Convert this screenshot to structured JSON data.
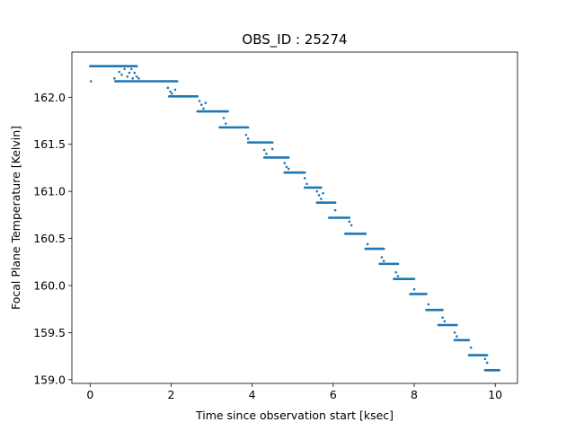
{
  "chart_data": {
    "type": "scatter",
    "title": "OBS_ID : 25274",
    "xlabel": "Time since observation start [ksec]",
    "ylabel": "Focal Plane Temperature [Kelvin]",
    "xlim": [
      -0.45,
      10.55
    ],
    "ylim": [
      158.96,
      162.48
    ],
    "xticks": [
      0,
      2,
      4,
      6,
      8,
      10
    ],
    "xtick_labels": [
      "0",
      "2",
      "4",
      "6",
      "8",
      "10"
    ],
    "yticks": [
      159.0,
      159.5,
      160.0,
      160.5,
      161.0,
      161.5,
      162.0
    ],
    "ytick_labels": [
      "159.0",
      "159.5",
      "160.0",
      "160.5",
      "161.0",
      "161.5",
      "162.0"
    ],
    "marker_color": "#1f77b4",
    "grid": false,
    "series": [
      {
        "name": "focal plane temperature",
        "levels": [
          {
            "y": 162.33,
            "x_start": 0.0,
            "x_end": 1.15
          },
          {
            "y": 162.17,
            "x_start": 0.62,
            "x_end": 2.15
          },
          {
            "y": 162.01,
            "x_start": 1.95,
            "x_end": 2.65
          },
          {
            "y": 161.85,
            "x_start": 2.65,
            "x_end": 3.4
          },
          {
            "y": 161.68,
            "x_start": 3.2,
            "x_end": 3.9
          },
          {
            "y": 161.52,
            "x_start": 3.9,
            "x_end": 4.5
          },
          {
            "y": 161.36,
            "x_start": 4.3,
            "x_end": 4.9
          },
          {
            "y": 161.2,
            "x_start": 4.8,
            "x_end": 5.3
          },
          {
            "y": 161.04,
            "x_start": 5.3,
            "x_end": 5.7
          },
          {
            "y": 160.88,
            "x_start": 5.6,
            "x_end": 6.05
          },
          {
            "y": 160.72,
            "x_start": 5.9,
            "x_end": 6.4
          },
          {
            "y": 160.55,
            "x_start": 6.3,
            "x_end": 6.8
          },
          {
            "y": 160.39,
            "x_start": 6.8,
            "x_end": 7.25
          },
          {
            "y": 160.23,
            "x_start": 7.15,
            "x_end": 7.6
          },
          {
            "y": 160.07,
            "x_start": 7.5,
            "x_end": 8.0
          },
          {
            "y": 159.91,
            "x_start": 7.9,
            "x_end": 8.3
          },
          {
            "y": 159.74,
            "x_start": 8.3,
            "x_end": 8.7
          },
          {
            "y": 159.58,
            "x_start": 8.6,
            "x_end": 9.05
          },
          {
            "y": 159.42,
            "x_start": 9.0,
            "x_end": 9.35
          },
          {
            "y": 159.26,
            "x_start": 9.35,
            "x_end": 9.8
          },
          {
            "y": 159.1,
            "x_start": 9.75,
            "x_end": 10.1
          }
        ],
        "scatter_points": [
          {
            "x": 0.02,
            "y": 162.17
          },
          {
            "x": 0.6,
            "y": 162.2
          },
          {
            "x": 0.72,
            "y": 162.27
          },
          {
            "x": 0.78,
            "y": 162.24
          },
          {
            "x": 0.85,
            "y": 162.3
          },
          {
            "x": 0.92,
            "y": 162.22
          },
          {
            "x": 0.97,
            "y": 162.26
          },
          {
            "x": 1.02,
            "y": 162.3
          },
          {
            "x": 1.05,
            "y": 162.2
          },
          {
            "x": 1.1,
            "y": 162.26
          },
          {
            "x": 1.15,
            "y": 162.22
          },
          {
            "x": 1.2,
            "y": 162.2
          },
          {
            "x": 1.92,
            "y": 162.1
          },
          {
            "x": 1.98,
            "y": 162.06
          },
          {
            "x": 2.02,
            "y": 162.04
          },
          {
            "x": 2.1,
            "y": 162.08
          },
          {
            "x": 2.7,
            "y": 161.96
          },
          {
            "x": 2.75,
            "y": 161.92
          },
          {
            "x": 2.8,
            "y": 161.88
          },
          {
            "x": 2.85,
            "y": 161.94
          },
          {
            "x": 3.3,
            "y": 161.78
          },
          {
            "x": 3.35,
            "y": 161.72
          },
          {
            "x": 3.85,
            "y": 161.6
          },
          {
            "x": 3.9,
            "y": 161.56
          },
          {
            "x": 4.3,
            "y": 161.44
          },
          {
            "x": 4.35,
            "y": 161.4
          },
          {
            "x": 4.5,
            "y": 161.45
          },
          {
            "x": 4.8,
            "y": 161.3
          },
          {
            "x": 4.85,
            "y": 161.26
          },
          {
            "x": 4.9,
            "y": 161.24
          },
          {
            "x": 5.3,
            "y": 161.14
          },
          {
            "x": 5.35,
            "y": 161.08
          },
          {
            "x": 5.6,
            "y": 161.0
          },
          {
            "x": 5.65,
            "y": 160.96
          },
          {
            "x": 5.7,
            "y": 160.92
          },
          {
            "x": 5.75,
            "y": 160.98
          },
          {
            "x": 6.05,
            "y": 160.8
          },
          {
            "x": 6.4,
            "y": 160.68
          },
          {
            "x": 6.45,
            "y": 160.64
          },
          {
            "x": 6.85,
            "y": 160.44
          },
          {
            "x": 7.2,
            "y": 160.3
          },
          {
            "x": 7.25,
            "y": 160.26
          },
          {
            "x": 7.55,
            "y": 160.14
          },
          {
            "x": 7.6,
            "y": 160.1
          },
          {
            "x": 8.0,
            "y": 159.96
          },
          {
            "x": 8.35,
            "y": 159.8
          },
          {
            "x": 8.7,
            "y": 159.66
          },
          {
            "x": 8.75,
            "y": 159.62
          },
          {
            "x": 9.0,
            "y": 159.5
          },
          {
            "x": 9.05,
            "y": 159.46
          },
          {
            "x": 9.4,
            "y": 159.34
          },
          {
            "x": 9.75,
            "y": 159.22
          },
          {
            "x": 9.8,
            "y": 159.18
          }
        ]
      }
    ]
  }
}
